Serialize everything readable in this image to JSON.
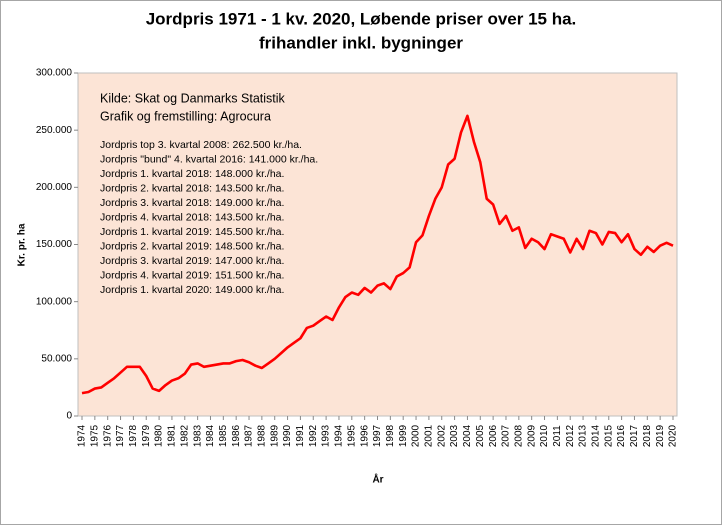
{
  "chart_data": {
    "type": "line",
    "title": "Jordpris 1971 - 1 kv. 2020, Løbende priser over 15 ha.",
    "subtitle": "frihandler inkl. bygninger",
    "x_label": "År",
    "y_label": "Kr. pr. ha",
    "annotations": [
      "Kilde: Skat og Danmarks Statistik",
      "Grafik og fremstilling: Agrocura"
    ],
    "notes": [
      "Jordpris top 3. kvartal 2008: 262.500 kr./ha.",
      "Jordpris \"bund\" 4. kvartal 2016: 141.000 kr./ha.",
      "Jordpris 1. kvartal 2018: 148.000 kr./ha.",
      "Jordpris 2. kvartal 2018: 143.500 kr./ha.",
      "Jordpris 3. kvartal 2018: 149.000 kr./ha.",
      "Jordpris 4. kvartal 2018: 143.500 kr./ha.",
      "Jordpris 1. kvartal 2019: 145.500 kr./ha.",
      "Jordpris 2. kvartal 2019: 148.500 kr./ha.",
      "Jordpris 3. kvartal 2019: 147.000 kr./ha.",
      "Jordpris 4. kvartal 2019: 151.500 kr./ha.",
      "Jordpris 1. kvartal 2020: 149.000 kr./ha."
    ],
    "categories": [
      "1974",
      null,
      "1975",
      null,
      "1976",
      null,
      "1977",
      null,
      "1978",
      null,
      "1979",
      null,
      "1980",
      null,
      "1981",
      null,
      "1982",
      null,
      "1983",
      null,
      "1984",
      null,
      "1985",
      null,
      "1986",
      null,
      "1987",
      null,
      "1988",
      null,
      "1989",
      null,
      "1990",
      null,
      "1991",
      null,
      "1992",
      null,
      "1993",
      null,
      "1994",
      null,
      "1995",
      null,
      "1996",
      null,
      "1997",
      null,
      "1998",
      null,
      "1999",
      null,
      "2000",
      null,
      "2001",
      null,
      "2002",
      null,
      "2003",
      null,
      "2004",
      null,
      "2005",
      null,
      "2006",
      null,
      "2007",
      null,
      "2008",
      null,
      "2009",
      null,
      "2010",
      null,
      "2011",
      null,
      "2012",
      null,
      "2013",
      null,
      "2014",
      null,
      "2015",
      null,
      "2016",
      null,
      "2017",
      null,
      "2018",
      null,
      "2019",
      null,
      "2020"
    ],
    "series": [
      {
        "name": "Jordpris",
        "color": "#ff0000",
        "values": [
          20000,
          21000,
          24000,
          25000,
          29000,
          33000,
          38000,
          43000,
          43000,
          43000,
          35000,
          24000,
          22000,
          27000,
          31000,
          33000,
          37000,
          45000,
          46000,
          43000,
          44000,
          45000,
          46000,
          46000,
          48000,
          49000,
          47000,
          44000,
          42000,
          46000,
          50000,
          55000,
          60000,
          64000,
          68000,
          77000,
          79000,
          83000,
          87000,
          84000,
          95000,
          104000,
          108000,
          106000,
          112000,
          108000,
          114000,
          116000,
          111000,
          122000,
          125000,
          130000,
          152000,
          158000,
          175000,
          190000,
          200000,
          220000,
          225000,
          248000,
          262500,
          240000,
          222000,
          190000,
          185000,
          168000,
          175000,
          162000,
          165000,
          147000,
          155000,
          152000,
          146000,
          159000,
          157000,
          155000,
          143000,
          155000,
          146000,
          162000,
          160000,
          150000,
          161000,
          160000,
          152000,
          159000,
          146000,
          141000,
          148000,
          143500,
          149000,
          151500,
          149000
        ]
      }
    ],
    "ylim": [
      0,
      300000
    ],
    "yticks": [
      0,
      {
        "value": 50000,
        "label": "50.000"
      },
      {
        "value": 100000,
        "label": "100.000"
      },
      {
        "value": 150000,
        "label": "150.000"
      },
      {
        "value": 200000,
        "label": "200.000"
      },
      {
        "value": 250000,
        "label": "250.000"
      },
      {
        "value": 300000,
        "label": "300.000"
      }
    ],
    "plot_background": "#fce4d6",
    "grid": false
  }
}
